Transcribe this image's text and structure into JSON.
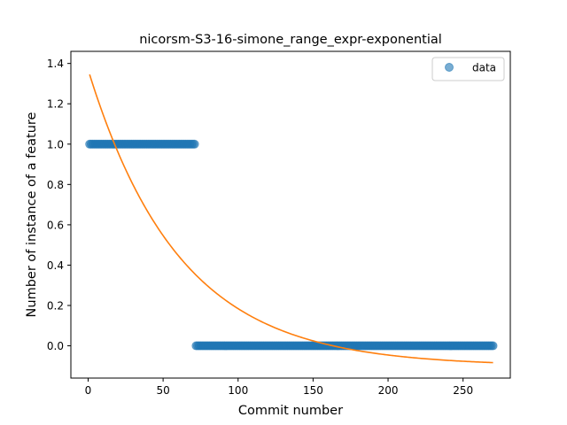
{
  "chart_data": {
    "type": "scatter",
    "title": "nicorsm-S3-16-simone_range_expr-exponential",
    "xlabel": "Commit number",
    "ylabel": "Number of instance of a feature",
    "xlim": [
      -11.5,
      281.5
    ],
    "ylim": [
      -0.16,
      1.46
    ],
    "xticks": [
      0,
      50,
      100,
      150,
      200,
      250
    ],
    "yticks": [
      0.0,
      0.2,
      0.4,
      0.6,
      0.8,
      1.0,
      1.2,
      1.4
    ],
    "xtick_labels": [
      "0",
      "50",
      "100",
      "150",
      "200",
      "250"
    ],
    "ytick_labels": [
      "0.0",
      "0.2",
      "0.4",
      "0.6",
      "0.8",
      "1.0",
      "1.2",
      "1.4"
    ],
    "grid": false,
    "legend_position": "top-right",
    "series": [
      {
        "name": "data",
        "kind": "scatter",
        "color": "#1f77b4",
        "segments": [
          {
            "x_start": 1,
            "x_end": 71,
            "y": 1
          },
          {
            "x_start": 72,
            "x_end": 270,
            "y": 0
          }
        ]
      },
      {
        "kind": "line",
        "color": "#ff7f0e",
        "fit": "exponential",
        "x_range": [
          1,
          270
        ],
        "params": {
          "a": 1.47,
          "b": 0.0164,
          "c": -0.101
        }
      }
    ]
  }
}
